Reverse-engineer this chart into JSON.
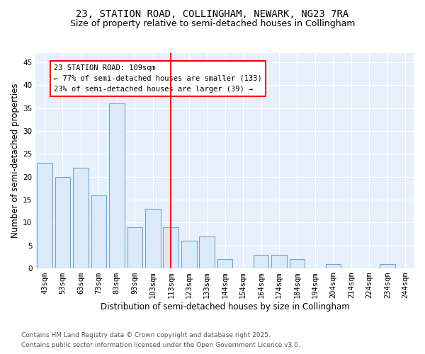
{
  "title_line1": "23, STATION ROAD, COLLINGHAM, NEWARK, NG23 7RA",
  "title_line2": "Size of property relative to semi-detached houses in Collingham",
  "xlabel": "Distribution of semi-detached houses by size in Collingham",
  "ylabel": "Number of semi-detached properties",
  "categories": [
    "43sqm",
    "53sqm",
    "63sqm",
    "73sqm",
    "83sqm",
    "93sqm",
    "103sqm",
    "113sqm",
    "123sqm",
    "133sqm",
    "144sqm",
    "154sqm",
    "164sqm",
    "174sqm",
    "184sqm",
    "194sqm",
    "204sqm",
    "214sqm",
    "224sqm",
    "234sqm",
    "244sqm"
  ],
  "values": [
    23,
    20,
    22,
    16,
    36,
    9,
    13,
    9,
    6,
    7,
    2,
    0,
    3,
    3,
    2,
    0,
    1,
    0,
    0,
    1,
    0
  ],
  "bar_color": "#dce9f8",
  "bar_edge_color": "#6fa8d8",
  "vline_x": 7.0,
  "vline_color": "red",
  "annotation_title": "23 STATION ROAD: 109sqm",
  "annotation_line1": "← 77% of semi-detached houses are smaller (133)",
  "annotation_line2": "23% of semi-detached houses are larger (39) →",
  "ylim": [
    0,
    47
  ],
  "yticks": [
    0,
    5,
    10,
    15,
    20,
    25,
    30,
    35,
    40,
    45
  ],
  "footnote_line1": "Contains HM Land Registry data © Crown copyright and database right 2025.",
  "footnote_line2": "Contains public sector information licensed under the Open Government Licence v3.0.",
  "background_color": "#ffffff",
  "plot_bg_color": "#e8f0fc",
  "grid_color": "#ffffff",
  "title_fontsize": 10,
  "subtitle_fontsize": 9,
  "axis_label_fontsize": 8.5,
  "tick_fontsize": 7.5,
  "annotation_fontsize": 7.5,
  "footnote_fontsize": 6.5
}
